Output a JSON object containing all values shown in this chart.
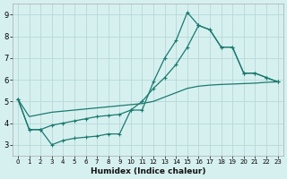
{
  "xlabel": "Humidex (Indice chaleur)",
  "bg_color": "#d6f0f0",
  "grid_color": "#b8d8d8",
  "line_color": "#1a7a6e",
  "xlim": [
    -0.5,
    23.5
  ],
  "ylim": [
    2.5,
    9.5
  ],
  "xticks": [
    0,
    1,
    2,
    3,
    4,
    5,
    6,
    7,
    8,
    9,
    10,
    11,
    12,
    13,
    14,
    15,
    16,
    17,
    18,
    19,
    20,
    21,
    22,
    23
  ],
  "yticks": [
    3,
    4,
    5,
    6,
    7,
    8,
    9
  ],
  "line1_x": [
    0,
    1,
    2,
    3,
    4,
    5,
    6,
    7,
    8,
    9,
    10,
    11,
    12,
    13,
    14,
    15,
    16,
    17,
    18,
    19,
    20,
    21,
    22,
    23
  ],
  "line1_y": [
    5.1,
    3.7,
    3.7,
    3.0,
    3.2,
    3.3,
    3.35,
    3.4,
    3.5,
    3.5,
    4.6,
    4.6,
    5.9,
    7.0,
    7.8,
    9.1,
    8.5,
    8.3,
    7.5,
    7.5,
    6.3,
    6.3,
    6.1,
    5.9
  ],
  "line2_x": [
    0,
    1,
    2,
    3,
    4,
    5,
    6,
    7,
    8,
    9,
    10,
    11,
    12,
    13,
    14,
    15,
    16,
    17,
    18,
    19,
    20,
    21,
    22,
    23
  ],
  "line2_y": [
    5.1,
    3.7,
    3.7,
    3.9,
    4.0,
    4.1,
    4.2,
    4.3,
    4.35,
    4.4,
    4.6,
    5.0,
    5.6,
    6.1,
    6.7,
    7.5,
    8.5,
    8.3,
    7.5,
    7.5,
    6.3,
    6.3,
    6.1,
    5.9
  ],
  "line3_x": [
    0,
    1,
    2,
    3,
    4,
    5,
    6,
    7,
    8,
    9,
    10,
    11,
    12,
    13,
    14,
    15,
    16,
    17,
    18,
    19,
    20,
    21,
    22,
    23
  ],
  "line3_y": [
    5.1,
    4.3,
    4.4,
    4.5,
    4.55,
    4.6,
    4.65,
    4.7,
    4.75,
    4.8,
    4.85,
    4.9,
    5.0,
    5.2,
    5.4,
    5.6,
    5.7,
    5.75,
    5.78,
    5.8,
    5.82,
    5.84,
    5.88,
    5.9
  ]
}
